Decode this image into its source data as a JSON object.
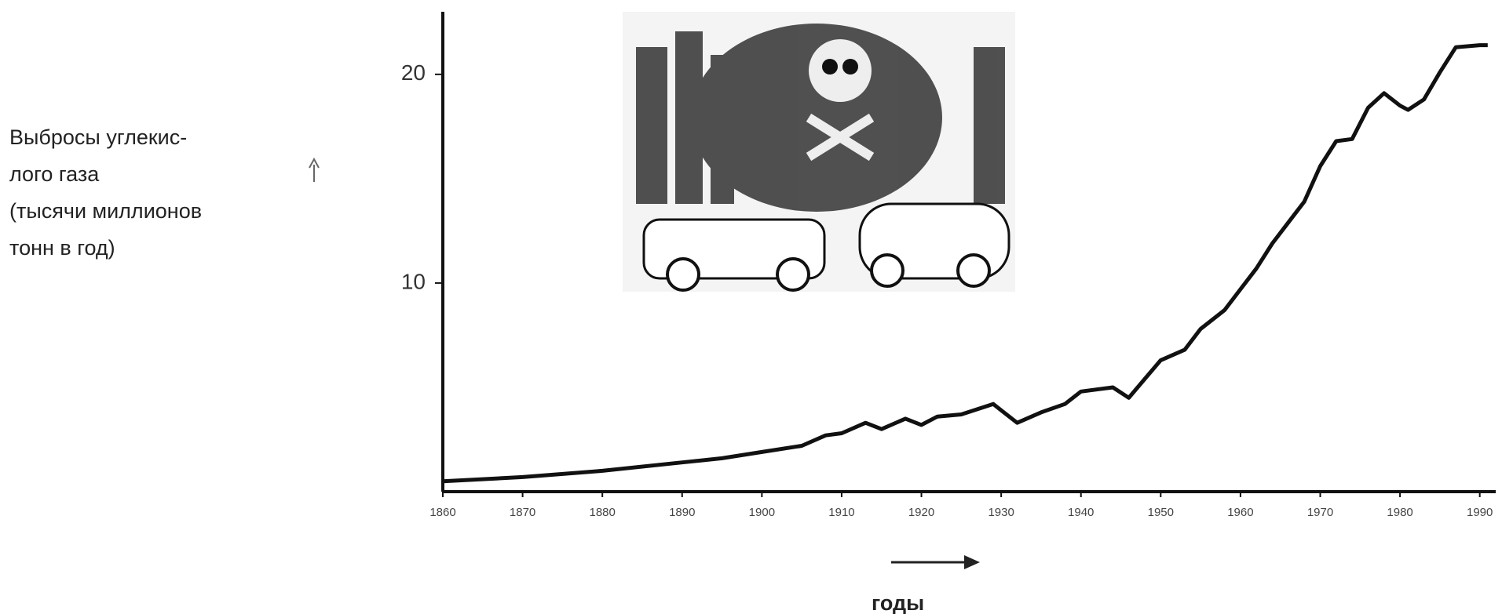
{
  "chart_data": {
    "type": "line",
    "y_label": [
      "Выбросы углекис-",
      "лого газа",
      "(тысячи миллионов",
      "тонн в год)"
    ],
    "x_label": "годы",
    "x": [
      1860,
      1870,
      1880,
      1890,
      1895,
      1900,
      1905,
      1908,
      1910,
      1913,
      1915,
      1918,
      1920,
      1922,
      1925,
      1929,
      1932,
      1935,
      1938,
      1940,
      1944,
      1946,
      1948,
      1950,
      1953,
      1955,
      1958,
      1960,
      1962,
      1964,
      1966,
      1968,
      1970,
      1972,
      1974,
      1976,
      1978,
      1980,
      1981,
      1983,
      1985,
      1987,
      1990,
      1991
    ],
    "values": [
      0.5,
      0.7,
      1.0,
      1.4,
      1.6,
      1.9,
      2.2,
      2.7,
      2.8,
      3.3,
      3.0,
      3.5,
      3.2,
      3.6,
      3.7,
      4.2,
      3.3,
      3.8,
      4.2,
      4.8,
      5.0,
      4.5,
      5.4,
      6.3,
      6.8,
      7.8,
      8.7,
      9.7,
      10.7,
      11.9,
      12.9,
      13.9,
      15.6,
      16.8,
      16.9,
      18.4,
      19.1,
      18.5,
      18.3,
      18.8,
      20.1,
      21.3,
      21.4,
      21.4
    ],
    "color": "#111111",
    "xlim": [
      1860,
      1992
    ],
    "ylim": [
      0,
      23
    ],
    "xticks": [
      1860,
      1870,
      1880,
      1890,
      1900,
      1910,
      1920,
      1930,
      1940,
      1950,
      1960,
      1970,
      1980,
      1990
    ],
    "yticks": [
      10,
      20
    ]
  }
}
